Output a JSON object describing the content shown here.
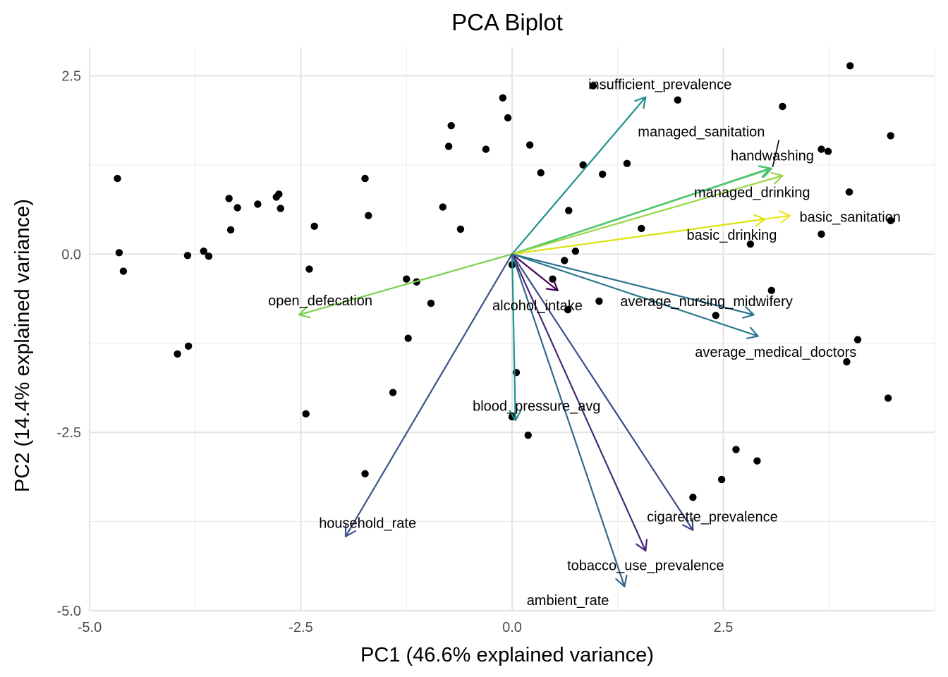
{
  "chart_data": {
    "type": "scatter",
    "title": "PCA Biplot",
    "xlabel": "PC1 (46.6% explained variance)",
    "ylabel": "PC2 (14.4% explained variance)",
    "xlim": [
      -5.0,
      5.0
    ],
    "ylim": [
      -5.0,
      2.9
    ],
    "x_ticks": [
      -5.0,
      -2.5,
      0.0,
      2.5
    ],
    "x_tick_labels": [
      "-5.0",
      "-2.5",
      "0.0",
      "2.5"
    ],
    "y_ticks": [
      -5.0,
      -2.5,
      0.0,
      2.5
    ],
    "y_tick_labels": [
      "-5.0",
      "-2.5",
      "0.0",
      "2.5"
    ],
    "grid": true,
    "points": [
      {
        "x": -4.67,
        "y": 1.06
      },
      {
        "x": -4.65,
        "y": 0.02
      },
      {
        "x": -4.6,
        "y": -0.24
      },
      {
        "x": -3.96,
        "y": -1.4
      },
      {
        "x": -3.83,
        "y": -1.29
      },
      {
        "x": -3.84,
        "y": -0.02
      },
      {
        "x": -3.65,
        "y": 0.04
      },
      {
        "x": -3.59,
        "y": -0.03
      },
      {
        "x": -3.35,
        "y": 0.78
      },
      {
        "x": -3.33,
        "y": 0.34
      },
      {
        "x": -3.25,
        "y": 0.65
      },
      {
        "x": -3.01,
        "y": 0.7
      },
      {
        "x": -2.79,
        "y": 0.8
      },
      {
        "x": -2.76,
        "y": 0.84
      },
      {
        "x": -2.74,
        "y": 0.64
      },
      {
        "x": -2.4,
        "y": -0.21
      },
      {
        "x": -2.34,
        "y": 0.39
      },
      {
        "x": -2.44,
        "y": -2.24
      },
      {
        "x": -1.74,
        "y": 1.06
      },
      {
        "x": -1.7,
        "y": 0.54
      },
      {
        "x": -1.74,
        "y": -3.08
      },
      {
        "x": -1.41,
        "y": -1.94
      },
      {
        "x": -1.25,
        "y": -0.35
      },
      {
        "x": -1.23,
        "y": -1.18
      },
      {
        "x": -1.13,
        "y": -0.39
      },
      {
        "x": -0.96,
        "y": -0.69
      },
      {
        "x": -0.82,
        "y": 0.66
      },
      {
        "x": -0.75,
        "y": 1.51
      },
      {
        "x": -0.72,
        "y": 1.8
      },
      {
        "x": -0.61,
        "y": 0.35
      },
      {
        "x": -0.31,
        "y": 1.47
      },
      {
        "x": -0.11,
        "y": 2.19
      },
      {
        "x": -0.05,
        "y": 1.91
      },
      {
        "x": 0.21,
        "y": 1.53
      },
      {
        "x": 0.34,
        "y": 1.14
      },
      {
        "x": 0.0,
        "y": -0.15
      },
      {
        "x": 0.05,
        "y": -1.66
      },
      {
        "x": 0.0,
        "y": -2.28
      },
      {
        "x": 0.19,
        "y": -2.54
      },
      {
        "x": 0.48,
        "y": -0.35
      },
      {
        "x": 0.62,
        "y": -0.09
      },
      {
        "x": 0.67,
        "y": 0.61
      },
      {
        "x": 0.66,
        "y": -0.78
      },
      {
        "x": 0.75,
        "y": 0.04
      },
      {
        "x": 0.84,
        "y": 1.25
      },
      {
        "x": 0.96,
        "y": 2.36
      },
      {
        "x": 1.03,
        "y": -0.66
      },
      {
        "x": 1.07,
        "y": 1.12
      },
      {
        "x": 1.36,
        "y": 1.27
      },
      {
        "x": 1.53,
        "y": 0.36
      },
      {
        "x": 1.96,
        "y": 2.16
      },
      {
        "x": 2.14,
        "y": -3.41
      },
      {
        "x": 2.41,
        "y": -0.86
      },
      {
        "x": 2.48,
        "y": -3.16
      },
      {
        "x": 2.65,
        "y": -2.74
      },
      {
        "x": 2.82,
        "y": 0.14
      },
      {
        "x": 2.9,
        "y": -2.9
      },
      {
        "x": 3.07,
        "y": -0.51
      },
      {
        "x": 3.2,
        "y": 2.07
      },
      {
        "x": 3.66,
        "y": 1.47
      },
      {
        "x": 3.74,
        "y": 1.44
      },
      {
        "x": 3.66,
        "y": 0.28
      },
      {
        "x": 3.99,
        "y": 0.87
      },
      {
        "x": 4.0,
        "y": 2.64
      },
      {
        "x": 4.09,
        "y": -1.2
      },
      {
        "x": 3.96,
        "y": -1.51
      },
      {
        "x": 4.45,
        "y": -2.02
      },
      {
        "x": 4.48,
        "y": 1.66
      },
      {
        "x": 4.48,
        "y": 0.47
      }
    ],
    "loadings": [
      {
        "name": "insufficient_prevalence",
        "x": 1.58,
        "y": 2.2,
        "label_x": 1.75,
        "label_y": 2.38,
        "color": "#21908c"
      },
      {
        "name": "managed_sanitation",
        "x": 3.05,
        "y": 1.2,
        "label_x": 2.24,
        "label_y": 1.72,
        "color": "#3bbb75",
        "leader": true
      },
      {
        "name": "handwashing",
        "x": 3.07,
        "y": 1.2,
        "label_x": 3.08,
        "label_y": 1.38,
        "color": "#51c56a"
      },
      {
        "name": "managed_drinking",
        "x": 3.2,
        "y": 1.1,
        "label_x": 2.84,
        "label_y": 0.87,
        "color": "#95d840"
      },
      {
        "name": "basic_sanitation",
        "x": 3.29,
        "y": 0.54,
        "label_x": 4.0,
        "label_y": 0.52,
        "color": "#f1e51d"
      },
      {
        "name": "basic_drinking",
        "x": 2.99,
        "y": 0.49,
        "label_x": 2.6,
        "label_y": 0.27,
        "color": "#dde318"
      },
      {
        "name": "open_defecation",
        "x": -2.52,
        "y": -0.85,
        "label_x": -2.27,
        "label_y": -0.65,
        "color": "#7ad151"
      },
      {
        "name": "alcohol_intake",
        "x": 0.54,
        "y": -0.51,
        "label_x": 0.3,
        "label_y": -0.72,
        "color": "#440154"
      },
      {
        "name": "average_nursing_midwifery",
        "x": 2.86,
        "y": -0.85,
        "label_x": 2.3,
        "label_y": -0.66,
        "color": "#2c728e"
      },
      {
        "name": "average_medical_doctors",
        "x": 2.91,
        "y": -1.15,
        "label_x": 3.12,
        "label_y": -1.37,
        "color": "#2a788e"
      },
      {
        "name": "blood_pressure_avg",
        "x": 0.04,
        "y": -2.33,
        "label_x": 0.29,
        "label_y": -2.13,
        "color": "#20928c"
      },
      {
        "name": "household_rate",
        "x": -1.97,
        "y": -3.96,
        "label_x": -1.71,
        "label_y": -3.77,
        "color": "#3b528b"
      },
      {
        "name": "cigarette_prevalence",
        "x": 2.14,
        "y": -3.87,
        "label_x": 2.37,
        "label_y": -3.68,
        "color": "#3e4a89"
      },
      {
        "name": "tobacco_use_prevalence",
        "x": 1.58,
        "y": -4.16,
        "label_x": 1.58,
        "label_y": -4.36,
        "color": "#482878"
      },
      {
        "name": "ambient_rate",
        "x": 1.33,
        "y": -4.66,
        "label_x": 0.66,
        "label_y": -4.85,
        "color": "#31688e"
      }
    ]
  }
}
